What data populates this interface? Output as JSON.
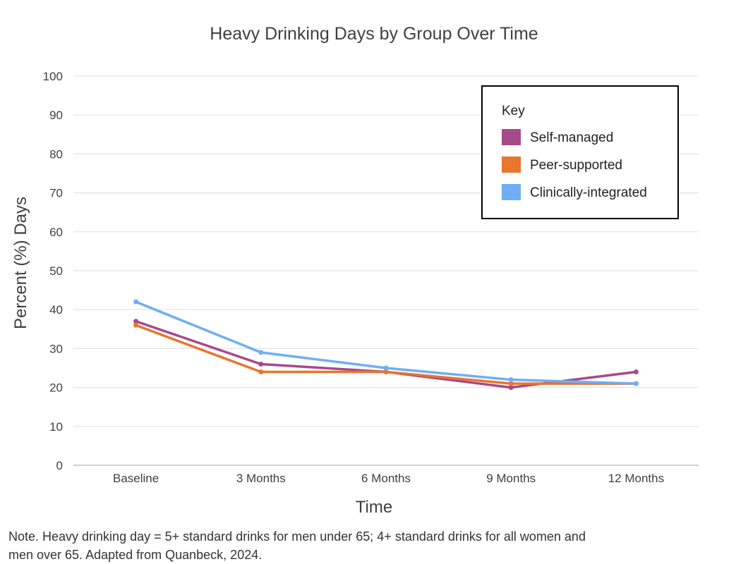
{
  "chart_data": {
    "type": "line",
    "title": "Heavy Drinking Days by Group Over Time",
    "xlabel": "Time",
    "ylabel": "Percent (%) Days",
    "ylim": [
      0,
      100
    ],
    "yticks": [
      0,
      10,
      20,
      30,
      40,
      50,
      60,
      70,
      80,
      90,
      100
    ],
    "grid": true,
    "categories": [
      "Baseline",
      "3 Months",
      "6 Months",
      "9 Months",
      "12 Months"
    ],
    "legend": {
      "title": "Key",
      "placement": "top-right"
    },
    "series": [
      {
        "name": "Self-managed",
        "color": "#A8498A",
        "values": [
          37,
          26,
          24,
          20,
          24
        ]
      },
      {
        "name": "Peer-supported",
        "color": "#E8762B",
        "values": [
          36,
          24,
          24,
          21,
          21
        ]
      },
      {
        "name": "Clinically-integrated",
        "color": "#6FAEF5",
        "values": [
          42,
          29,
          25,
          22,
          21
        ]
      }
    ]
  },
  "note": {
    "line1": "Note. Heavy drinking day = 5+ standard drinks for men under 65; 4+ standard drinks for all women and",
    "line2": "men over 65. Adapted from Quanbeck, 2024."
  }
}
